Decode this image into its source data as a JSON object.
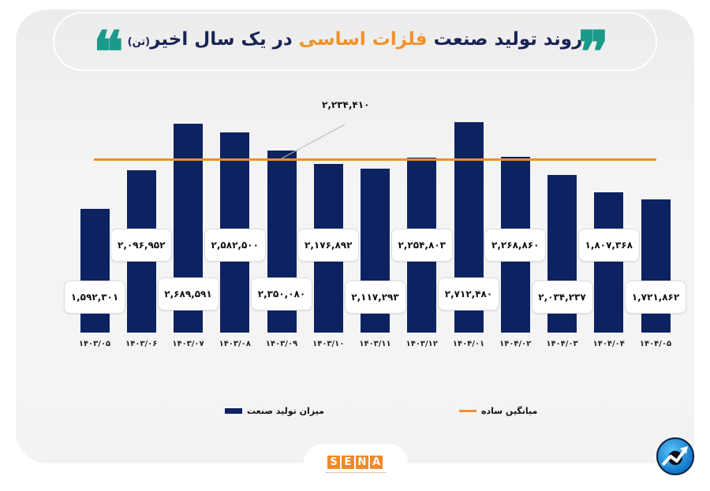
{
  "title": {
    "part1": "روند تولید صنعت",
    "highlight": "فلزات اساسی",
    "part2": "در یک سال اخیر",
    "unit": "(تن)"
  },
  "icons": {
    "open_quote": "❝",
    "close_quote": "❞"
  },
  "colors": {
    "bar": "#0d2261",
    "average_line": "#ef8f2c",
    "title": "#1a2355",
    "highlight": "#f0922b",
    "quote": "#1a9a88",
    "brand": "#f08a2a"
  },
  "chart_data": {
    "type": "bar",
    "title": "روند تولید صنعت فلزات اساسی در یک سال اخیر (تن)",
    "xlabel": "",
    "ylabel": "",
    "categories": [
      "1403/05",
      "1403/06",
      "1403/07",
      "1403/08",
      "1403/09",
      "1403/10",
      "1403/11",
      "1403/12",
      "1404/01",
      "1404/02",
      "1404/03",
      "1404/04",
      "1404/05"
    ],
    "category_labels": [
      "۱۴۰۳/۰۵",
      "۱۴۰۳/۰۶",
      "۱۴۰۳/۰۷",
      "۱۴۰۳/۰۸",
      "۱۴۰۳/۰۹",
      "۱۴۰۳/۱۰",
      "۱۴۰۳/۱۱",
      "۱۴۰۳/۱۲",
      "۱۴۰۴/۰۱",
      "۱۴۰۴/۰۲",
      "۱۴۰۴/۰۳",
      "۱۴۰۴/۰۴",
      "۱۴۰۴/۰۵"
    ],
    "series": [
      {
        "name": "میزان تولید صنعت",
        "values": [
          1592301,
          2096952,
          2689591,
          2582500,
          2350080,
          2176892,
          2117293,
          2254803,
          2712480,
          2268860,
          2034237,
          1807368,
          1721862
        ],
        "value_labels": [
          "۱,۵۹۲,۳۰۱",
          "۲,۰۹۶,۹۵۲",
          "۲,۶۸۹,۵۹۱",
          "۲,۵۸۲,۵۰۰",
          "۲,۳۵۰,۰۸۰",
          "۲,۱۷۶,۸۹۲",
          "۲,۱۱۷,۲۹۳",
          "۲,۲۵۴,۸۰۳",
          "۲,۷۱۲,۴۸۰",
          "۲,۲۶۸,۸۶۰",
          "۲,۰۳۴,۲۳۷",
          "۱,۸۰۷,۳۶۸",
          "۱,۷۲۱,۸۶۲"
        ]
      },
      {
        "name": "میانگین ساده",
        "type": "line",
        "value": 2234410,
        "value_label": "۲,۲۳۴,۴۱۰"
      }
    ],
    "grid": false,
    "legend_position": "bottom",
    "ylim": [
      0,
      2750000
    ]
  },
  "legend": {
    "bars": "میزان تولید صنعت",
    "line": "میانگین ساده"
  },
  "footer": {
    "logo_letters": [
      "S",
      "E",
      "N",
      "A"
    ]
  }
}
